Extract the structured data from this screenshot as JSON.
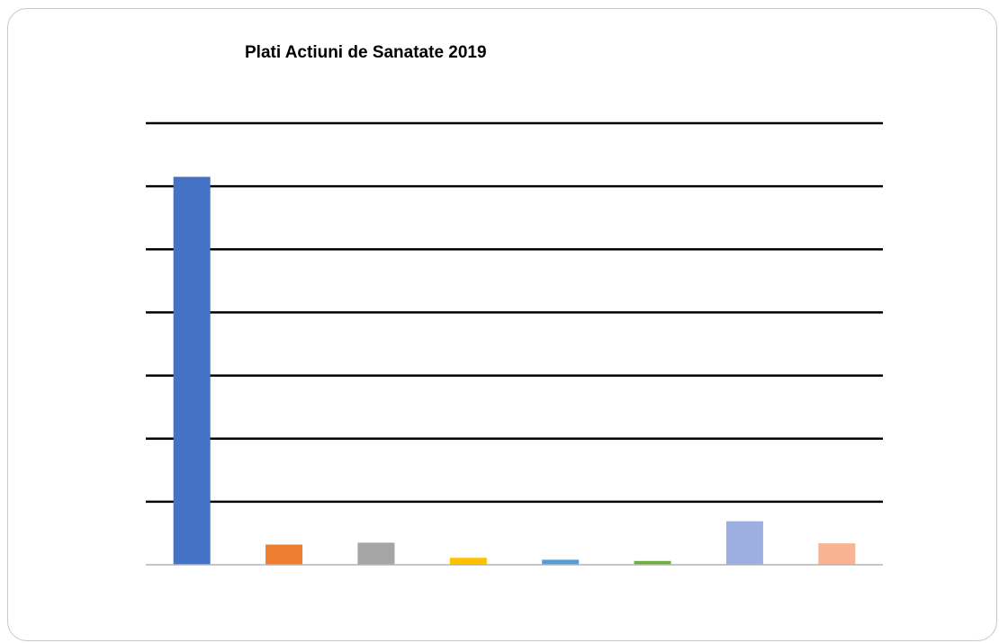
{
  "chart_data": {
    "type": "bar",
    "title": "Plati Actiuni de Sanatate 2019",
    "xlabel": "",
    "ylabel": "",
    "categories": [
      "",
      "",
      "",
      "",
      "",
      "",
      "",
      ""
    ],
    "values": [
      6.15,
      0.32,
      0.35,
      0.11,
      0.08,
      0.06,
      0.69,
      0.34
    ],
    "colors": [
      "#4472C4",
      "#ED7D31",
      "#A5A5A5",
      "#FFC000",
      "#5B9BD5",
      "#70AD47",
      "#9DAFE0",
      "#F9B394"
    ],
    "ylim": [
      0,
      7
    ],
    "grid": true,
    "legend": "none"
  }
}
